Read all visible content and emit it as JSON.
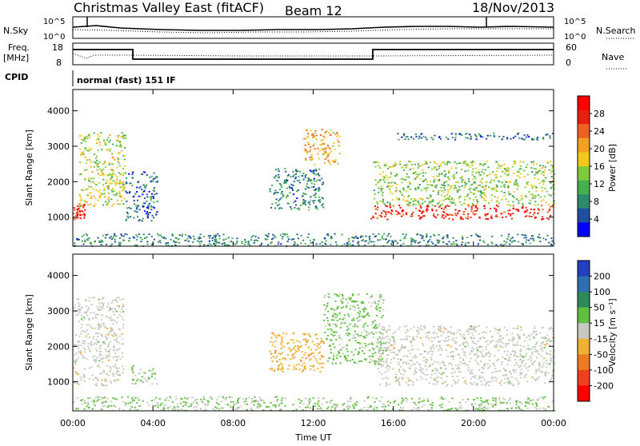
{
  "header": {
    "title": "Christmas Valley East (fitACF)",
    "beam": "Beam 12",
    "date": "18/Nov/2013"
  },
  "summary_panels": {
    "nsky_label": "N.Sky",
    "nsky_ticks": [
      "10^5",
      "10^0"
    ],
    "nsearch_label": "N.Search",
    "nsearch_ticks": [
      "10^5",
      "10^0"
    ],
    "freq_label": "Freq.",
    "freq_unit": "[MHz]",
    "freq_ticks": [
      "18",
      "8"
    ],
    "nave_label": "Nave",
    "nave_ticks": [
      "60",
      "0"
    ],
    "cpid_label": "CPID",
    "cpid_value": "normal (fast) 151 IF"
  },
  "colors": {
    "power_scale": [
      "#0000ff",
      "#1e4fa0",
      "#2f8a6a",
      "#46b050",
      "#7fcc3a",
      "#f2c91a",
      "#f5a020",
      "#f06020",
      "#e82010",
      "#ff0000"
    ],
    "velocity_scale": [
      "#2040c0",
      "#2f6fb0",
      "#2f8a5a",
      "#5fc040",
      "#c8c8c0",
      "#f0b030",
      "#f07a20",
      "#f04020",
      "#ff0000"
    ]
  },
  "chart_data": [
    {
      "type": "heatmap",
      "panel": "power",
      "xlabel": "Time UT",
      "ylabel": "Slant Range [km]",
      "x_ticks": [
        "00:00",
        "04:00",
        "08:00",
        "12:00",
        "16:00",
        "20:00",
        "00:00"
      ],
      "xlim_hours": [
        0,
        24
      ],
      "ylim": [
        180,
        4600
      ],
      "y_ticks": [
        1000,
        2000,
        3000,
        4000
      ],
      "colorbar_label": "Power [dB]",
      "colorbar_ticks": [
        4,
        8,
        12,
        16,
        20,
        24,
        28
      ],
      "colorbar_range": [
        0,
        32
      ],
      "regions": [
        {
          "t": [
            0.0,
            0.6
          ],
          "r": [
            950,
            1400
          ],
          "level": 28
        },
        {
          "t": [
            0.3,
            2.6
          ],
          "r": [
            1300,
            3400
          ],
          "level": 16
        },
        {
          "t": [
            2.6,
            4.2
          ],
          "r": [
            900,
            2300
          ],
          "level": 6
        },
        {
          "t": [
            9.8,
            12.5
          ],
          "r": [
            1200,
            2400
          ],
          "level": 8
        },
        {
          "t": [
            11.5,
            13.3
          ],
          "r": [
            2500,
            3500
          ],
          "level": 20
        },
        {
          "t": [
            14.8,
            24.0
          ],
          "r": [
            950,
            1350
          ],
          "level": 28
        },
        {
          "t": [
            15.0,
            24.0
          ],
          "r": [
            1350,
            2600
          ],
          "level": 14
        },
        {
          "t": [
            16.0,
            24.0
          ],
          "r": [
            3200,
            3400
          ],
          "level": 6
        },
        {
          "t": [
            0.0,
            24.0
          ],
          "r": [
            200,
            550
          ],
          "level": 8
        }
      ]
    },
    {
      "type": "heatmap",
      "panel": "velocity",
      "xlabel": "Time UT",
      "ylabel": "Slant Range [km]",
      "x_ticks": [
        "00:00",
        "04:00",
        "08:00",
        "12:00",
        "16:00",
        "20:00",
        "00:00"
      ],
      "xlim_hours": [
        0,
        24
      ],
      "ylim": [
        180,
        4600
      ],
      "y_ticks": [
        1000,
        2000,
        3000,
        4000
      ],
      "colorbar_label": "Velocity [m s⁻¹]",
      "colorbar_ticks": [
        "200",
        "100",
        "50",
        "15",
        "-15",
        "-50",
        "-100",
        "-200"
      ],
      "colorbar_range": [
        -250,
        250
      ],
      "regions": [
        {
          "t": [
            0.0,
            2.5
          ],
          "r": [
            900,
            3400
          ],
          "level": 0
        },
        {
          "t": [
            2.9,
            4.2
          ],
          "r": [
            950,
            1500
          ],
          "level": 30
        },
        {
          "t": [
            9.8,
            12.5
          ],
          "r": [
            1300,
            2400
          ],
          "level": -60
        },
        {
          "t": [
            12.5,
            15.5
          ],
          "r": [
            1500,
            3500
          ],
          "level": 40
        },
        {
          "t": [
            15.2,
            24.0
          ],
          "r": [
            900,
            2600
          ],
          "level": 0
        },
        {
          "t": [
            0.0,
            24.0
          ],
          "r": [
            200,
            600
          ],
          "level": 30
        }
      ]
    }
  ]
}
